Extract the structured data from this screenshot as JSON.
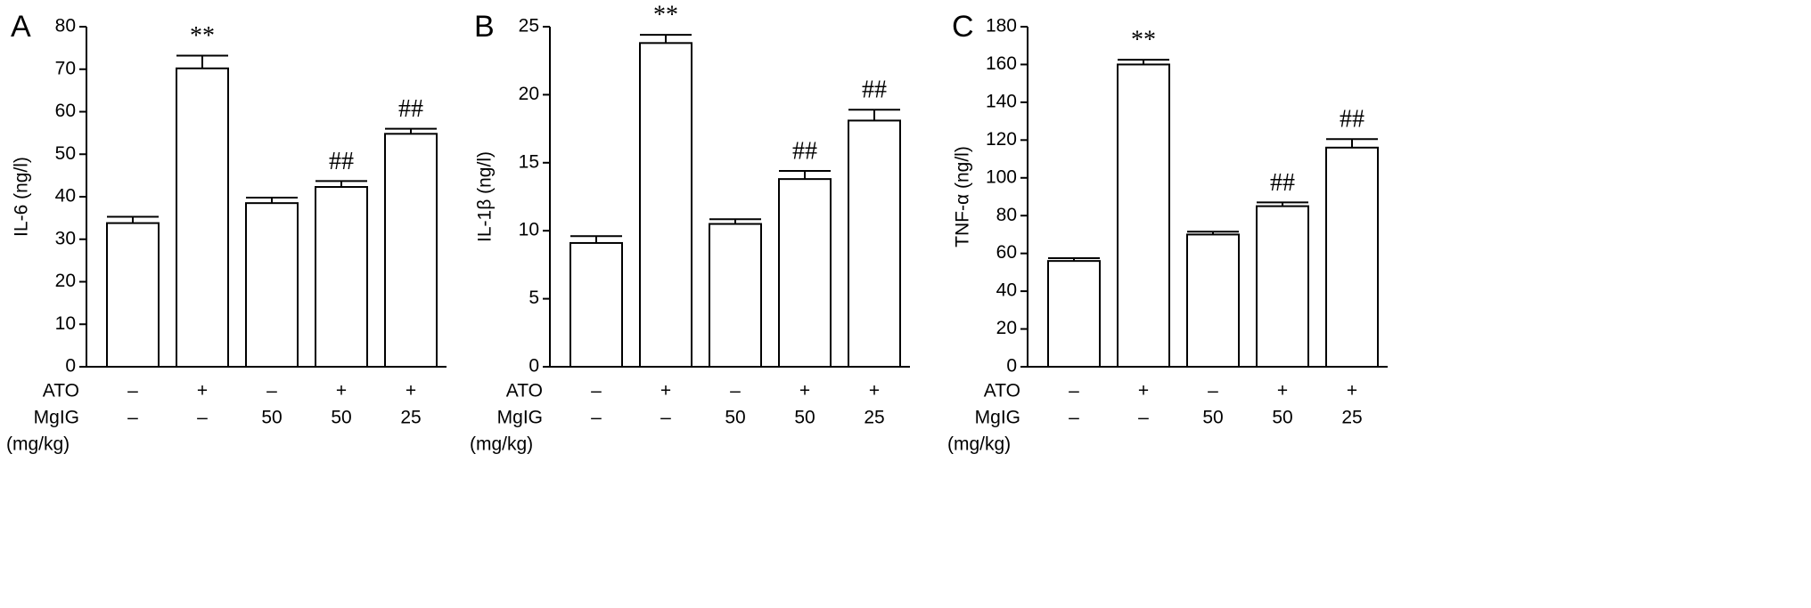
{
  "chart_data": [
    {
      "type": "bar",
      "panel_label": "A",
      "y_label": "IL-6 (ng/l)",
      "values": [
        33.8,
        70.2,
        38.5,
        42.3,
        54.8
      ],
      "errors": [
        1.5,
        3,
        1.3,
        1.4,
        1.2
      ],
      "annotations": [
        null,
        "**",
        null,
        "##",
        "##"
      ],
      "rows": [
        {
          "name": "ATO",
          "labels": [
            "–",
            "+",
            "–",
            "+",
            "+"
          ]
        },
        {
          "name": "MgIG",
          "labels": [
            "–",
            "–",
            "50",
            "50",
            "25"
          ]
        }
      ],
      "row_note": "(mg/kg)",
      "color": "#ffffff",
      "edge_color": "#000000",
      "ylim": [
        0,
        80
      ],
      "yticks": [
        0,
        10,
        20,
        30,
        40,
        50,
        60,
        70,
        80
      ]
    },
    {
      "type": "bar",
      "panel_label": "B",
      "y_label": "IL-1β (ng/l)",
      "values": [
        9.1,
        23.8,
        10.5,
        13.8,
        18.1
      ],
      "errors": [
        0.5,
        0.6,
        0.35,
        0.6,
        0.8
      ],
      "annotations": [
        null,
        "**",
        null,
        "##",
        "##"
      ],
      "rows": [
        {
          "name": "ATO",
          "labels": [
            "–",
            "+",
            "–",
            "+",
            "+"
          ]
        },
        {
          "name": "MgIG",
          "labels": [
            "–",
            "–",
            "50",
            "50",
            "25"
          ]
        }
      ],
      "row_note": "(mg/kg)",
      "color": "#ffffff",
      "edge_color": "#000000",
      "ylim": [
        0,
        25
      ],
      "yticks": [
        0,
        5,
        10,
        15,
        20,
        25
      ]
    },
    {
      "type": "bar",
      "panel_label": "C",
      "y_label": "TNF-α (ng/l)",
      "values": [
        56,
        160,
        70,
        85,
        116
      ],
      "errors": [
        1.5,
        2.5,
        1.5,
        2,
        4.5
      ],
      "annotations": [
        null,
        "**",
        null,
        "##",
        "##"
      ],
      "rows": [
        {
          "name": "ATO",
          "labels": [
            "–",
            "+",
            "–",
            "+",
            "+"
          ]
        },
        {
          "name": "MgIG",
          "labels": [
            "–",
            "–",
            "50",
            "50",
            "25"
          ]
        }
      ],
      "row_note": "(mg/kg)",
      "color": "#ffffff",
      "edge_color": "#000000",
      "ylim": [
        0,
        180
      ],
      "yticks": [
        0,
        20,
        40,
        60,
        80,
        100,
        120,
        140,
        160,
        180
      ]
    }
  ]
}
